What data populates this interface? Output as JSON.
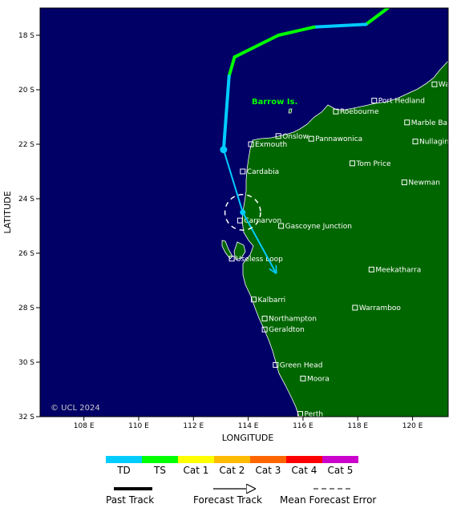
{
  "map": {
    "x_axis_title": "LONGITUDE",
    "y_axis_title": "LATITUDE",
    "lon_range": [
      106.4,
      121.3
    ],
    "lat_range": [
      17,
      32
    ],
    "lon_ticks": [
      {
        "value": 108,
        "label": "108 E"
      },
      {
        "value": 110,
        "label": "110 E"
      },
      {
        "value": 112,
        "label": "112 E"
      },
      {
        "value": 114,
        "label": "114 E"
      },
      {
        "value": 116,
        "label": "116 E"
      },
      {
        "value": 118,
        "label": "118 E"
      },
      {
        "value": 120,
        "label": "120 E"
      }
    ],
    "lat_ticks": [
      {
        "value": 18,
        "label": "18 S"
      },
      {
        "value": 20,
        "label": "20 S"
      },
      {
        "value": 22,
        "label": "22 S"
      },
      {
        "value": 24,
        "label": "24 S"
      },
      {
        "value": 26,
        "label": "26 S"
      },
      {
        "value": 28,
        "label": "28 S"
      },
      {
        "value": 30,
        "label": "30 S"
      },
      {
        "value": 32,
        "label": "32 S"
      }
    ],
    "copyright": "© UCL 2024",
    "island_label": "Barrow Is.",
    "colors": {
      "ocean": "#000066",
      "land": "#006600",
      "td": "#00ccff",
      "ts": "#00ff00",
      "island_label": "#00ff00"
    },
    "towns": [
      {
        "name": "Wallal Downs",
        "lon": 120.8,
        "lat": 19.8
      },
      {
        "name": "Port Hedland",
        "lon": 118.6,
        "lat": 20.4
      },
      {
        "name": "Roebourne",
        "lon": 117.2,
        "lat": 20.8
      },
      {
        "name": "Marble Bar",
        "lon": 119.8,
        "lat": 21.2
      },
      {
        "name": "Onslow",
        "lon": 115.1,
        "lat": 21.7
      },
      {
        "name": "Pannawonica",
        "lon": 116.3,
        "lat": 21.8
      },
      {
        "name": "Exmouth",
        "lon": 114.1,
        "lat": 22.0
      },
      {
        "name": "Nullagine",
        "lon": 120.1,
        "lat": 21.9
      },
      {
        "name": "Tom Price",
        "lon": 117.8,
        "lat": 22.7
      },
      {
        "name": "Cardabia",
        "lon": 113.8,
        "lat": 23.0
      },
      {
        "name": "Newman",
        "lon": 119.7,
        "lat": 23.4
      },
      {
        "name": "Carnarvon",
        "lon": 113.7,
        "lat": 24.8
      },
      {
        "name": "Gascoyne Junction",
        "lon": 115.2,
        "lat": 25.0
      },
      {
        "name": "Useless Loop",
        "lon": 113.4,
        "lat": 26.2
      },
      {
        "name": "Meekatharra",
        "lon": 118.5,
        "lat": 26.6
      },
      {
        "name": "Kalbarri",
        "lon": 114.2,
        "lat": 27.7
      },
      {
        "name": "Warramboo",
        "lon": 117.9,
        "lat": 28.0
      },
      {
        "name": "Northampton",
        "lon": 114.6,
        "lat": 28.4
      },
      {
        "name": "Geraldton",
        "lon": 114.6,
        "lat": 28.8
      },
      {
        "name": "Green Head",
        "lon": 115.0,
        "lat": 30.1
      },
      {
        "name": "Moora",
        "lon": 116.0,
        "lat": 30.6
      },
      {
        "name": "Perth",
        "lon": 115.9,
        "lat": 31.9
      }
    ],
    "past_track": [
      {
        "lon": 119.1,
        "lat": 17.0,
        "cat": "TS"
      },
      {
        "lon": 118.3,
        "lat": 17.6,
        "cat": "TS"
      },
      {
        "lon": 116.4,
        "lat": 17.7,
        "cat": "TD"
      },
      {
        "lon": 115.1,
        "lat": 18.0,
        "cat": "TS"
      },
      {
        "lon": 113.5,
        "lat": 18.8,
        "cat": "TS"
      },
      {
        "lon": 113.3,
        "lat": 19.5,
        "cat": "TS"
      },
      {
        "lon": 113.1,
        "lat": 22.2,
        "cat": "TD"
      }
    ],
    "forecast_track": [
      {
        "lon": 113.1,
        "lat": 22.2
      },
      {
        "lon": 113.8,
        "lat": 24.5
      },
      {
        "lon": 115.0,
        "lat": 26.7
      }
    ],
    "error_circle": {
      "lon": 113.8,
      "lat": 24.5,
      "radius_deg": 0.65
    }
  },
  "legend": {
    "categories": [
      {
        "label": "TD",
        "color": "#00ccff"
      },
      {
        "label": "TS",
        "color": "#00ff00"
      },
      {
        "label": "Cat 1",
        "color": "#ffff00"
      },
      {
        "label": "Cat 2",
        "color": "#ffbb00"
      },
      {
        "label": "Cat 3",
        "color": "#ff6600"
      },
      {
        "label": "Cat 4",
        "color": "#ff0000"
      },
      {
        "label": "Cat 5",
        "color": "#cc00cc"
      }
    ],
    "past_track": "Past Track",
    "forecast_track": "Forecast Track",
    "mean_error": "Mean Forecast Error"
  }
}
